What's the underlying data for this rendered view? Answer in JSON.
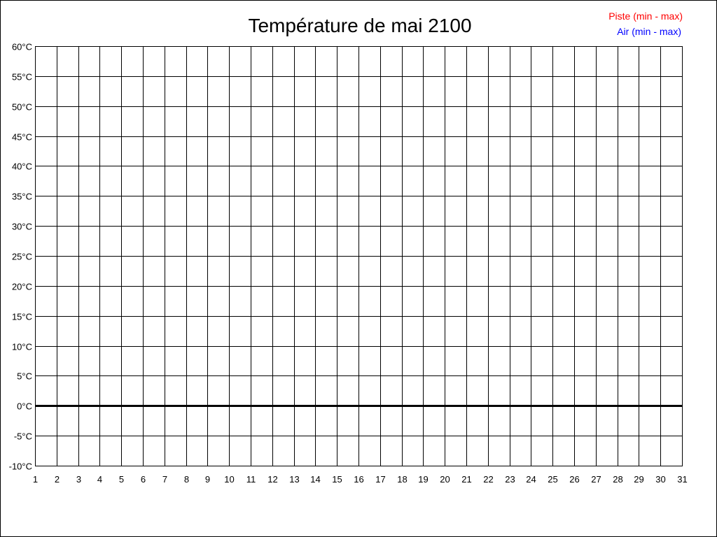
{
  "chart_data": {
    "type": "line",
    "title": "Température de mai 2100",
    "xlabel": "",
    "ylabel": "",
    "x_ticks": [
      "1",
      "2",
      "3",
      "4",
      "5",
      "6",
      "7",
      "8",
      "9",
      "10",
      "11",
      "12",
      "13",
      "14",
      "15",
      "16",
      "17",
      "18",
      "19",
      "20",
      "21",
      "22",
      "23",
      "24",
      "25",
      "26",
      "27",
      "28",
      "29",
      "30",
      "31"
    ],
    "y_ticks": [
      60,
      55,
      50,
      45,
      40,
      35,
      30,
      25,
      20,
      15,
      10,
      5,
      0,
      -5,
      -10
    ],
    "y_unit": "°C",
    "xlim": [
      1,
      31
    ],
    "ylim": [
      -10,
      60
    ],
    "grid": true,
    "legend_position": "top-right",
    "series": [
      {
        "name": "Piste (min - max)",
        "color": "#ff0000",
        "values": []
      },
      {
        "name": "Air (min - max)",
        "color": "#0000ff",
        "values": []
      }
    ]
  }
}
